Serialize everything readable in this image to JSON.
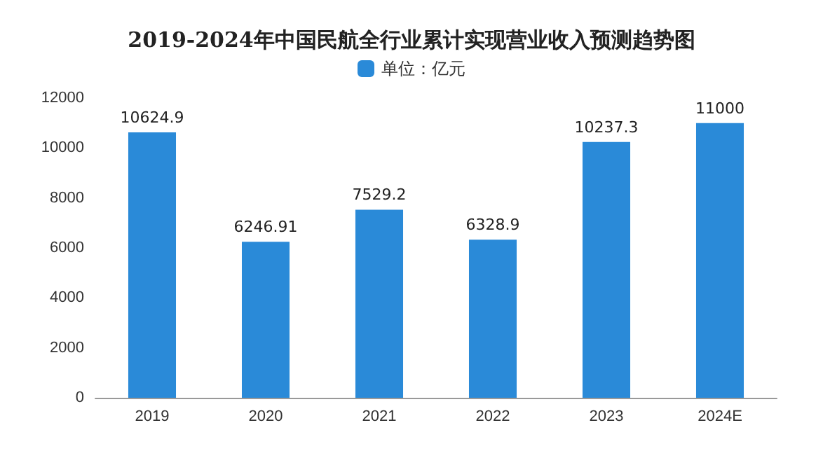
{
  "chart_data": {
    "type": "bar",
    "title": "2019-2024年中国民航全行业累计实现营业收入预测趋势图",
    "categories": [
      "2019",
      "2020",
      "2021",
      "2022",
      "2023",
      "2024E"
    ],
    "series": [
      {
        "name": "单位：亿元",
        "color": "#2a8ad8",
        "values": [
          10624.9,
          6246.91,
          7529.2,
          6328.9,
          10237.3,
          11000
        ]
      }
    ],
    "ylim": [
      0,
      12000
    ],
    "yticks": [
      0,
      2000,
      4000,
      6000,
      8000,
      10000,
      12000
    ],
    "grid": false,
    "legend": "top",
    "data_labels": true
  }
}
